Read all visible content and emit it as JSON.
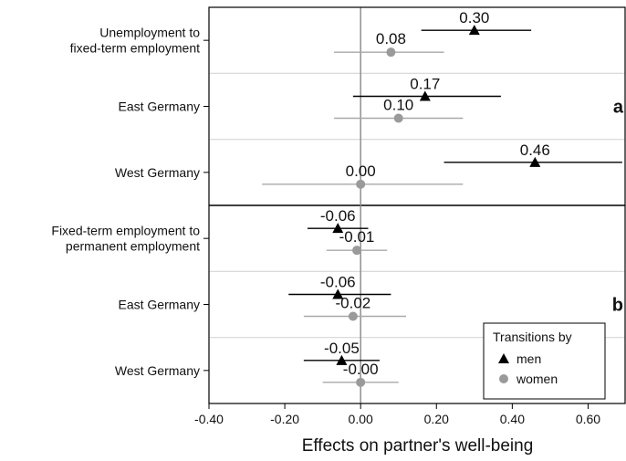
{
  "chart_data": {
    "type": "scatter",
    "subtype": "coefficient-plot-with-confidence-intervals",
    "xlabel": "Effects on partner's well-being",
    "xlim": [
      -0.4,
      0.7
    ],
    "x_ticks": [
      "-0.40",
      "-0.20",
      "0.00",
      "0.20",
      "0.40",
      "0.60"
    ],
    "x_tick_values": [
      -0.4,
      -0.2,
      0.0,
      0.2,
      0.4,
      0.6
    ],
    "reference_line_x": 0,
    "legend": {
      "title": "Transitions by",
      "placement": "bottom-right",
      "entries": [
        {
          "label": "men",
          "marker": "triangle",
          "color": "#000000"
        },
        {
          "label": "women",
          "marker": "circle",
          "color": "#9a9a9a"
        }
      ]
    },
    "panels": [
      {
        "label": "a",
        "rows": [
          {
            "label_lines": [
              "Unemployment to",
              "fixed-term employment"
            ],
            "men": {
              "estimate": 0.3,
              "text": "0.30",
              "ci": [
                0.16,
                0.45
              ]
            },
            "women": {
              "estimate": 0.08,
              "text": "0.08",
              "ci": [
                -0.07,
                0.22
              ]
            }
          },
          {
            "label_lines": [
              "East Germany"
            ],
            "men": {
              "estimate": 0.17,
              "text": "0.17",
              "ci": [
                -0.02,
                0.37
              ]
            },
            "women": {
              "estimate": 0.1,
              "text": "0.10",
              "ci": [
                -0.07,
                0.27
              ]
            }
          },
          {
            "label_lines": [
              "West Germany"
            ],
            "men": {
              "estimate": 0.46,
              "text": "0.46",
              "ci": [
                0.22,
                0.69
              ]
            },
            "women": {
              "estimate": 0.0,
              "text": "0.00",
              "ci": [
                -0.26,
                0.27
              ]
            }
          }
        ]
      },
      {
        "label": "b",
        "rows": [
          {
            "label_lines": [
              "Fixed-term employment to",
              "permanent employment"
            ],
            "men": {
              "estimate": -0.06,
              "text": "-0.06",
              "ci": [
                -0.14,
                0.02
              ]
            },
            "women": {
              "estimate": -0.01,
              "text": "-0.01",
              "ci": [
                -0.09,
                0.07
              ]
            }
          },
          {
            "label_lines": [
              "East Germany"
            ],
            "men": {
              "estimate": -0.06,
              "text": "-0.06",
              "ci": [
                -0.19,
                0.08
              ]
            },
            "women": {
              "estimate": -0.02,
              "text": "-0.02",
              "ci": [
                -0.15,
                0.12
              ]
            }
          },
          {
            "label_lines": [
              "West Germany"
            ],
            "men": {
              "estimate": -0.05,
              "text": "-0.05",
              "ci": [
                -0.15,
                0.05
              ]
            },
            "women": {
              "estimate": -0.0,
              "text": "-0.00",
              "ci": [
                -0.1,
                0.1
              ]
            }
          }
        ]
      }
    ]
  }
}
